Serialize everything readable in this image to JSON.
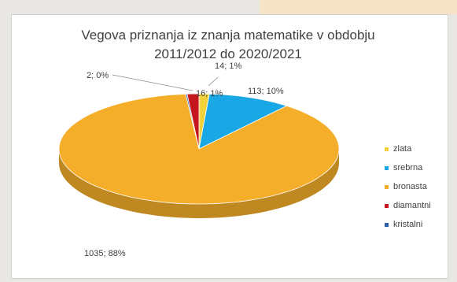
{
  "chart_data": {
    "type": "pie",
    "title": "Vegova priznanja iz znanja matematike v obdobju 2011/2012 do 2020/2021",
    "title_lines": [
      "Vegova priznanja iz znanja matematike v obdobju",
      "2011/2012 do 2020/2021"
    ],
    "series": [
      {
        "name": "zlata",
        "value": 14,
        "label": "14; 1%",
        "color": "#f2d13a"
      },
      {
        "name": "srebrna",
        "value": 113,
        "label": "113; 10%",
        "color": "#19a7e6"
      },
      {
        "name": "bronasta",
        "value": 1035,
        "label": "1035; 88%",
        "color": "#f5ae2a"
      },
      {
        "name": "diamantni",
        "value": 16,
        "label": "16; 1%",
        "color": "#c4161c"
      },
      {
        "name": "kristalni",
        "value": 2,
        "label": "2; 0%",
        "color": "#2f5fa8"
      }
    ],
    "legend_position": "right",
    "style": "3d"
  }
}
